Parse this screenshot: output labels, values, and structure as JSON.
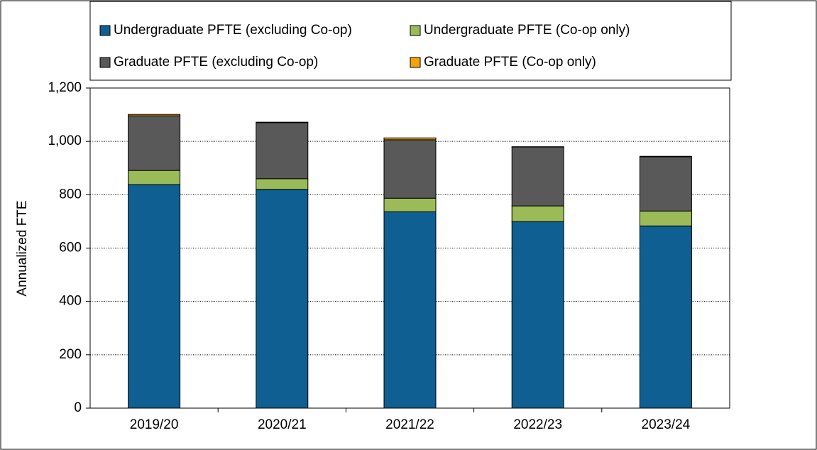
{
  "chart_data": {
    "type": "stacked_bar",
    "y_label": "Annualized FTE",
    "categories": [
      "2019/20",
      "2020/21",
      "2021/22",
      "2022/23",
      "2023/24"
    ],
    "series": [
      {
        "name": "Undergraduate PFTE (excluding Co-op)",
        "color": "#0f5f92",
        "values": [
          838,
          820,
          736,
          699,
          683
        ]
      },
      {
        "name": "Undergraduate PFTE (Co-op only)",
        "color": "#9bbb59",
        "values": [
          53,
          40,
          51,
          59,
          56
        ]
      },
      {
        "name": "Graduate PFTE (excluding Co-op)",
        "color": "#595959",
        "values": [
          205,
          210,
          219,
          221,
          203
        ]
      },
      {
        "name": "Graduate PFTE (Co-op only)",
        "color": "#f5a30a",
        "values": [
          5,
          2,
          7,
          1,
          2
        ]
      }
    ],
    "ylim": [
      0,
      1200
    ],
    "yticks": [
      0,
      200,
      400,
      600,
      800,
      {
        "value": 1000,
        "label": "1,000"
      },
      {
        "value": 1200,
        "label": "1,200"
      }
    ],
    "grid": true,
    "legend": "top"
  }
}
